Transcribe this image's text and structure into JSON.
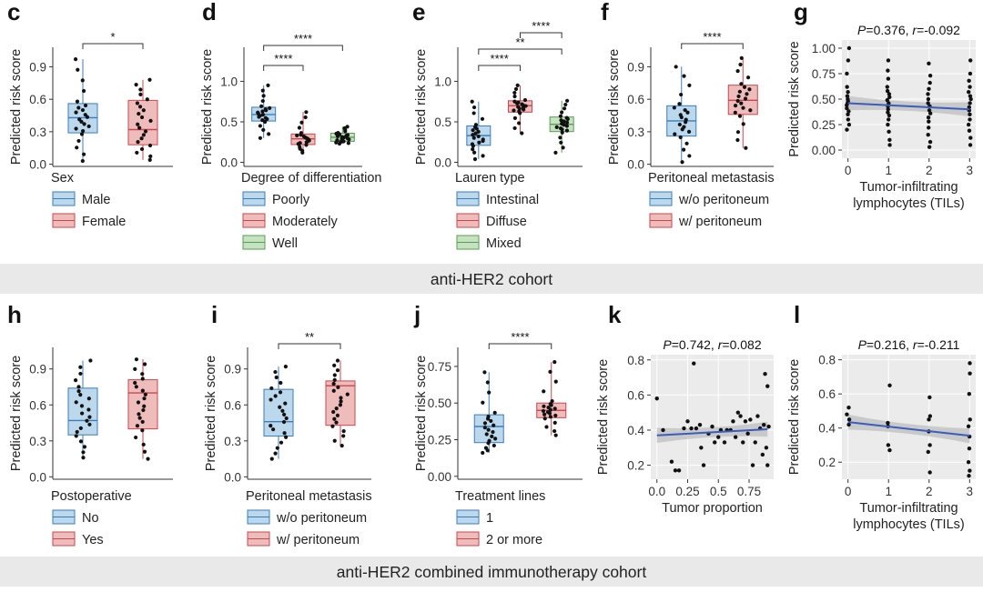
{
  "colors": {
    "blue_fill": "#bcd8ec",
    "blue_line": "#3b7db8",
    "red_fill": "#efbcbc",
    "red_line": "#c9474d",
    "green_fill": "#c5e2c1",
    "green_line": "#5a9c56",
    "panel_bg": "#ebebeb",
    "trend": "#3a5dbd",
    "banner": "#e9e9e9"
  },
  "banners": [
    {
      "text": "anti-HER2 cohort"
    },
    {
      "text": "anti-HER2 combined immunotherapy cohort"
    }
  ],
  "chart_data": [
    {
      "panel": "c",
      "type": "box",
      "ylabel": "Predicted risk score",
      "ylim": [
        -0.02,
        1.08
      ],
      "yticks": [
        0.0,
        0.3,
        0.6,
        0.9
      ],
      "ytick_labels": [
        "0.0",
        "0.3",
        "0.6",
        "0.9"
      ],
      "legend_title": "Sex",
      "groups": [
        {
          "label": "Male",
          "color": "blue",
          "min": 0.03,
          "q1": 0.29,
          "median": 0.43,
          "q3": 0.56,
          "max": 0.97
        },
        {
          "label": "Female",
          "color": "red",
          "min": 0.04,
          "q1": 0.18,
          "median": 0.32,
          "q3": 0.59,
          "max": 0.78
        }
      ],
      "comparisons": [
        {
          "a": 0,
          "b": 1,
          "label": "*"
        }
      ]
    },
    {
      "panel": "d",
      "type": "box",
      "ylabel": "Predicted risk score",
      "ylim": [
        -0.05,
        1.42
      ],
      "yticks": [
        0.0,
        0.5,
        1.0
      ],
      "ytick_labels": [
        "0.0",
        "0.5",
        "1.0"
      ],
      "legend_title": "Degree of differentiation",
      "groups": [
        {
          "label": "Poorly",
          "color": "blue",
          "min": 0.3,
          "q1": 0.51,
          "median": 0.59,
          "q3": 0.68,
          "max": 0.95
        },
        {
          "label": "Moderately",
          "color": "red",
          "min": 0.12,
          "q1": 0.22,
          "median": 0.29,
          "q3": 0.35,
          "max": 0.62
        },
        {
          "label": "Well",
          "color": "green",
          "min": 0.23,
          "q1": 0.26,
          "median": 0.31,
          "q3": 0.36,
          "max": 0.44
        }
      ],
      "comparisons": [
        {
          "a": 0,
          "b": 1,
          "label": "****"
        },
        {
          "a": 0,
          "b": 2,
          "label": "****"
        }
      ]
    },
    {
      "panel": "e",
      "type": "box",
      "ylabel": "Predicted risk score",
      "ylim": [
        -0.05,
        1.42
      ],
      "yticks": [
        0.0,
        0.5,
        1.0
      ],
      "ytick_labels": [
        "0.0",
        "0.5",
        "1.0"
      ],
      "legend_title": "Lauren type",
      "groups": [
        {
          "label": "Intestinal",
          "color": "blue",
          "min": 0.04,
          "q1": 0.21,
          "median": 0.33,
          "q3": 0.45,
          "max": 0.75
        },
        {
          "label": "Diffuse",
          "color": "red",
          "min": 0.36,
          "q1": 0.62,
          "median": 0.7,
          "q3": 0.76,
          "max": 0.95
        },
        {
          "label": "Mixed",
          "color": "green",
          "min": 0.12,
          "q1": 0.38,
          "median": 0.47,
          "q3": 0.56,
          "max": 0.76
        }
      ],
      "comparisons": [
        {
          "a": 0,
          "b": 1,
          "label": "****"
        },
        {
          "a": 0,
          "b": 2,
          "label": "**"
        },
        {
          "a": 1,
          "b": 2,
          "label": "****"
        }
      ]
    },
    {
      "panel": "f",
      "type": "box",
      "ylabel": "Predicted risk score",
      "ylim": [
        -0.02,
        1.08
      ],
      "yticks": [
        0.0,
        0.3,
        0.6,
        0.9
      ],
      "ytick_labels": [
        "0.0",
        "0.3",
        "0.6",
        "0.9"
      ],
      "legend_title": "Peritoneal metastasis",
      "groups": [
        {
          "label": "w/o peritoneum",
          "color": "blue",
          "min": 0.02,
          "q1": 0.26,
          "median": 0.4,
          "q3": 0.54,
          "max": 0.9
        },
        {
          "label": "w/ peritoneum",
          "color": "red",
          "min": 0.15,
          "q1": 0.46,
          "median": 0.59,
          "q3": 0.73,
          "max": 0.98
        }
      ],
      "comparisons": [
        {
          "a": 0,
          "b": 1,
          "label": "****"
        }
      ]
    },
    {
      "panel": "g",
      "type": "scatter",
      "ylabel": "Predicted risk score",
      "xlabel_lines": [
        "Tumor-infiltrating",
        "lymphocytes (TILs)"
      ],
      "annotation": {
        "p": "P",
        "pval": "=0.376, ",
        "r": "r",
        "rval": "=-0.092"
      },
      "xlim": [
        -0.15,
        3.15
      ],
      "ylim": [
        -0.08,
        1.08
      ],
      "xticks": [
        0,
        1,
        2,
        3
      ],
      "xtick_labels": [
        "0",
        "1",
        "2",
        "3"
      ],
      "yticks": [
        0.0,
        0.25,
        0.5,
        0.75,
        1.0
      ],
      "ytick_labels": [
        "0.00",
        "0.25",
        "0.50",
        "0.75",
        "1.00"
      ],
      "trend": {
        "x0": 0,
        "y0": 0.46,
        "x1": 3,
        "y1": 0.4
      },
      "points": [
        [
          0,
          1.0
        ],
        [
          0,
          0.88
        ],
        [
          0,
          0.75
        ],
        [
          0,
          0.62
        ],
        [
          0,
          0.57
        ],
        [
          0,
          0.53
        ],
        [
          0,
          0.5
        ],
        [
          0,
          0.48
        ],
        [
          0,
          0.46
        ],
        [
          0,
          0.44
        ],
        [
          0,
          0.41
        ],
        [
          0,
          0.38
        ],
        [
          0,
          0.35
        ],
        [
          0,
          0.3
        ],
        [
          0,
          0.25
        ],
        [
          0,
          0.2
        ],
        [
          1,
          0.88
        ],
        [
          1,
          0.78
        ],
        [
          1,
          0.7
        ],
        [
          1,
          0.62
        ],
        [
          1,
          0.58
        ],
        [
          1,
          0.55
        ],
        [
          1,
          0.52
        ],
        [
          1,
          0.49
        ],
        [
          1,
          0.46
        ],
        [
          1,
          0.43
        ],
        [
          1,
          0.4
        ],
        [
          1,
          0.37
        ],
        [
          1,
          0.34
        ],
        [
          1,
          0.3
        ],
        [
          1,
          0.25
        ],
        [
          1,
          0.18
        ],
        [
          1,
          0.1
        ],
        [
          1,
          0.05
        ],
        [
          2,
          0.85
        ],
        [
          2,
          0.73
        ],
        [
          2,
          0.66
        ],
        [
          2,
          0.6
        ],
        [
          2,
          0.55
        ],
        [
          2,
          0.5
        ],
        [
          2,
          0.46
        ],
        [
          2,
          0.43
        ],
        [
          2,
          0.39
        ],
        [
          2,
          0.36
        ],
        [
          2,
          0.32
        ],
        [
          2,
          0.28
        ],
        [
          2,
          0.22
        ],
        [
          2,
          0.15
        ],
        [
          2,
          0.08
        ],
        [
          2,
          0.03
        ],
        [
          3,
          0.88
        ],
        [
          3,
          0.75
        ],
        [
          3,
          0.68
        ],
        [
          3,
          0.62
        ],
        [
          3,
          0.57
        ],
        [
          3,
          0.53
        ],
        [
          3,
          0.5
        ],
        [
          3,
          0.46
        ],
        [
          3,
          0.42
        ],
        [
          3,
          0.39
        ],
        [
          3,
          0.35
        ],
        [
          3,
          0.3
        ],
        [
          3,
          0.25
        ],
        [
          3,
          0.19
        ],
        [
          3,
          0.12
        ],
        [
          3,
          0.05
        ]
      ]
    },
    {
      "panel": "h",
      "type": "box",
      "ylabel": "Predicted risk score",
      "ylim": [
        -0.02,
        1.08
      ],
      "yticks": [
        0.0,
        0.3,
        0.6,
        0.9
      ],
      "ytick_labels": [
        "0.0",
        "0.3",
        "0.6",
        "0.9"
      ],
      "legend_title": "Postoperative",
      "groups": [
        {
          "label": "No",
          "color": "blue",
          "min": 0.16,
          "q1": 0.35,
          "median": 0.47,
          "q3": 0.74,
          "max": 0.97
        },
        {
          "label": "Yes",
          "color": "red",
          "min": 0.15,
          "q1": 0.4,
          "median": 0.7,
          "q3": 0.81,
          "max": 0.98
        }
      ],
      "comparisons": []
    },
    {
      "panel": "i",
      "type": "box",
      "ylabel": "Predicted risk score",
      "ylim": [
        -0.02,
        1.08
      ],
      "yticks": [
        0.0,
        0.3,
        0.6,
        0.9
      ],
      "ytick_labels": [
        "0.0",
        "0.3",
        "0.6",
        "0.9"
      ],
      "legend_title": "Peritoneal metastasis",
      "groups": [
        {
          "label": "w/o peritoneum",
          "color": "blue",
          "min": 0.15,
          "q1": 0.34,
          "median": 0.46,
          "q3": 0.73,
          "max": 0.92
        },
        {
          "label": "w/ peritoneum",
          "color": "red",
          "min": 0.26,
          "q1": 0.43,
          "median": 0.76,
          "q3": 0.8,
          "max": 0.97
        }
      ],
      "comparisons": [
        {
          "a": 0,
          "b": 1,
          "label": "**"
        }
      ]
    },
    {
      "panel": "j",
      "type": "box",
      "ylabel": "Predicted risk score",
      "ylim": [
        -0.02,
        0.88
      ],
      "yticks": [
        0.0,
        0.25,
        0.5,
        0.75
      ],
      "ytick_labels": [
        "0.00",
        "0.25",
        "0.50",
        "0.75"
      ],
      "legend_title": "Treatment lines",
      "groups": [
        {
          "label": "1",
          "color": "blue",
          "min": 0.16,
          "q1": 0.23,
          "median": 0.34,
          "q3": 0.42,
          "max": 0.71
        },
        {
          "label": "2 or more",
          "color": "red",
          "min": 0.28,
          "q1": 0.4,
          "median": 0.45,
          "q3": 0.5,
          "max": 0.78
        }
      ],
      "comparisons": [
        {
          "a": 0,
          "b": 1,
          "label": "****"
        }
      ]
    },
    {
      "panel": "k",
      "type": "scatter",
      "ylabel": "Predicted risk score",
      "xlabel_lines": [
        "Tumor proportion"
      ],
      "annotation": {
        "p": "P",
        "pval": "=0.742, ",
        "r": "r",
        "rval": "=0.082"
      },
      "xlim": [
        -0.05,
        0.95
      ],
      "ylim": [
        0.12,
        0.83
      ],
      "xticks": [
        0.0,
        0.25,
        0.5,
        0.75
      ],
      "xtick_labels": [
        "0.0",
        "0.25",
        "0.5",
        "0.75"
      ],
      "yticks": [
        0.2,
        0.4,
        0.6,
        0.8
      ],
      "ytick_labels": [
        "0.2",
        "0.4",
        "0.6",
        "0.8"
      ],
      "trend": {
        "x0": 0.0,
        "y0": 0.37,
        "x1": 0.9,
        "y1": 0.405
      },
      "points": [
        [
          0.0,
          0.58
        ],
        [
          0.05,
          0.4
        ],
        [
          0.12,
          0.22
        ],
        [
          0.15,
          0.17
        ],
        [
          0.18,
          0.17
        ],
        [
          0.22,
          0.41
        ],
        [
          0.25,
          0.45
        ],
        [
          0.28,
          0.41
        ],
        [
          0.3,
          0.78
        ],
        [
          0.32,
          0.41
        ],
        [
          0.35,
          0.43
        ],
        [
          0.36,
          0.3
        ],
        [
          0.38,
          0.2
        ],
        [
          0.42,
          0.38
        ],
        [
          0.45,
          0.42
        ],
        [
          0.47,
          0.33
        ],
        [
          0.5,
          0.36
        ],
        [
          0.52,
          0.4
        ],
        [
          0.55,
          0.33
        ],
        [
          0.57,
          0.4
        ],
        [
          0.6,
          0.4
        ],
        [
          0.62,
          0.45
        ],
        [
          0.64,
          0.36
        ],
        [
          0.66,
          0.5
        ],
        [
          0.68,
          0.48
        ],
        [
          0.7,
          0.33
        ],
        [
          0.72,
          0.45
        ],
        [
          0.74,
          0.38
        ],
        [
          0.76,
          0.46
        ],
        [
          0.78,
          0.2
        ],
        [
          0.8,
          0.33
        ],
        [
          0.82,
          0.48
        ],
        [
          0.84,
          0.41
        ],
        [
          0.86,
          0.26
        ],
        [
          0.87,
          0.43
        ],
        [
          0.88,
          0.72
        ],
        [
          0.89,
          0.3
        ],
        [
          0.9,
          0.65
        ],
        [
          0.9,
          0.2
        ],
        [
          0.91,
          0.42
        ]
      ]
    },
    {
      "panel": "l",
      "type": "scatter",
      "ylabel": "Predicted risk score",
      "xlabel_lines": [
        "Tumor-infiltrating",
        "lymphocytes (TILs)"
      ],
      "annotation": {
        "p": "P",
        "pval": "=0.216, ",
        "r": "r",
        "rval": "=-0.211"
      },
      "xlim": [
        -0.15,
        3.15
      ],
      "ylim": [
        0.1,
        0.83
      ],
      "xticks": [
        0,
        1,
        2,
        3
      ],
      "xtick_labels": [
        "0",
        "1",
        "2",
        "3"
      ],
      "yticks": [
        0.2,
        0.4,
        0.6,
        0.8
      ],
      "ytick_labels": [
        "0.2",
        "0.4",
        "0.6",
        "0.8"
      ],
      "trend": {
        "x0": 0,
        "y0": 0.435,
        "x1": 3,
        "y1": 0.355
      },
      "points": [
        [
          0,
          0.52
        ],
        [
          0,
          0.48
        ],
        [
          0,
          0.45
        ],
        [
          0,
          0.42
        ],
        [
          1,
          0.65
        ],
        [
          1,
          0.43
        ],
        [
          1,
          0.41
        ],
        [
          1,
          0.3
        ],
        [
          1,
          0.27
        ],
        [
          2,
          0.58
        ],
        [
          2,
          0.47
        ],
        [
          2,
          0.45
        ],
        [
          2,
          0.38
        ],
        [
          2,
          0.3
        ],
        [
          2,
          0.26
        ],
        [
          2,
          0.14
        ],
        [
          3,
          0.78
        ],
        [
          3,
          0.72
        ],
        [
          3,
          0.6
        ],
        [
          3,
          0.45
        ],
        [
          3,
          0.41
        ],
        [
          3,
          0.35
        ],
        [
          3,
          0.28
        ],
        [
          3,
          0.2
        ],
        [
          3,
          0.15
        ],
        [
          3,
          0.12
        ]
      ]
    }
  ]
}
